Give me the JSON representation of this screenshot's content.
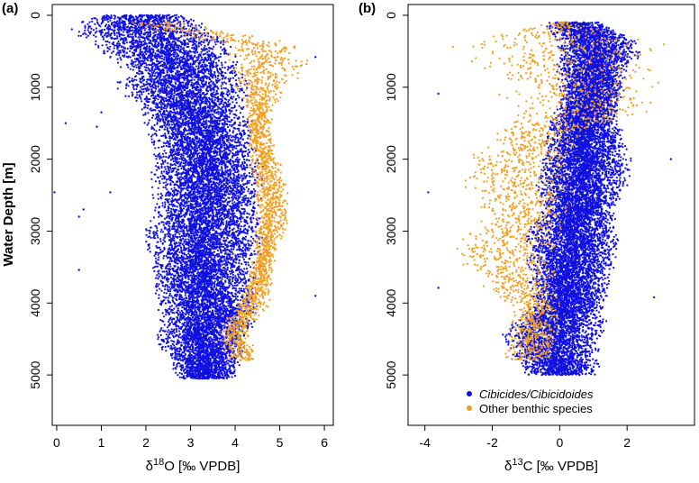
{
  "figure": {
    "y_axis_label": "Water Depth [m]",
    "legend": [
      {
        "label": "Cibicides/Cibicidoides",
        "italic": true,
        "color": "#1010e0"
      },
      {
        "label": "Other benthic species",
        "italic": false,
        "color": "#f0a020"
      }
    ]
  },
  "chart_data": [
    {
      "type": "scatter",
      "panel_label": "(a)",
      "xlabel_prefix": "δ",
      "xlabel_sup": "18",
      "xlabel_suffix": "O [‰ VPDB]",
      "xlim": [
        -0.1,
        6.2
      ],
      "xticks": [
        0,
        1,
        2,
        3,
        4,
        5,
        6
      ],
      "ylim": [
        5700,
        -150
      ],
      "yticks": [
        0,
        1000,
        2000,
        3000,
        4000,
        5000
      ],
      "y_reversed": true,
      "grid": false,
      "series": [
        {
          "name": "Cibicides/Cibicidoides",
          "color": "#1010e0",
          "profile": [
            [
              0,
              0.8,
              3.0
            ],
            [
              200,
              0.3,
              3.6
            ],
            [
              400,
              0.5,
              4.1
            ],
            [
              600,
              1.2,
              4.1
            ],
            [
              800,
              1.5,
              4.3
            ],
            [
              1000,
              1.2,
              4.4
            ],
            [
              1200,
              1.7,
              4.3
            ],
            [
              1500,
              1.9,
              4.4
            ],
            [
              1800,
              2.1,
              4.5
            ],
            [
              2200,
              2.1,
              4.7
            ],
            [
              2600,
              2.1,
              4.6
            ],
            [
              3000,
              1.9,
              4.8
            ],
            [
              3400,
              2.0,
              4.6
            ],
            [
              3800,
              2.1,
              4.5
            ],
            [
              4200,
              2.3,
              4.6
            ],
            [
              4500,
              2.2,
              4.3
            ],
            [
              4800,
              2.5,
              4.2
            ],
            [
              5050,
              2.7,
              4.0
            ]
          ]
        },
        {
          "name": "Other benthic species",
          "color": "#f0a020",
          "profile": [
            [
              100,
              1.2,
              3.0
            ],
            [
              400,
              3.5,
              5.5
            ],
            [
              700,
              3.8,
              5.8
            ],
            [
              1000,
              4.0,
              5.2
            ],
            [
              1300,
              4.2,
              4.9
            ],
            [
              1600,
              4.2,
              4.8
            ],
            [
              2000,
              4.3,
              5.0
            ],
            [
              2400,
              4.4,
              5.2
            ],
            [
              2800,
              4.4,
              5.3
            ],
            [
              3200,
              4.4,
              5.0
            ],
            [
              3600,
              4.3,
              4.9
            ],
            [
              4000,
              4.0,
              4.8
            ],
            [
              4400,
              3.6,
              4.3
            ],
            [
              4800,
              3.8,
              4.6
            ]
          ]
        }
      ],
      "outliers": [
        [
          -0.05,
          2460
        ],
        [
          1.0,
          1350
        ],
        [
          1.2,
          2460
        ],
        [
          0.5,
          2800
        ],
        [
          0.6,
          2700
        ],
        [
          0.5,
          3540
        ],
        [
          5.8,
          580
        ],
        [
          5.8,
          3900
        ],
        [
          0.2,
          1500
        ],
        [
          0.9,
          1550
        ]
      ]
    },
    {
      "type": "scatter",
      "panel_label": "(b)",
      "xlabel_prefix": "δ",
      "xlabel_sup": "13",
      "xlabel_suffix": "C [‰ VPDB]",
      "xlim": [
        -4.5,
        4.0
      ],
      "xticks": [
        -4,
        -2,
        0,
        2
      ],
      "ylim": [
        5700,
        -150
      ],
      "yticks": [
        0,
        1000,
        2000,
        3000,
        4000,
        5000
      ],
      "y_reversed": true,
      "grid": false,
      "series": [
        {
          "name": "Cibicides/Cibicidoides",
          "color": "#1010e0",
          "profile": [
            [
              100,
              -0.5,
              1.2
            ],
            [
              300,
              -0.2,
              2.2
            ],
            [
              500,
              -0.1,
              2.5
            ],
            [
              800,
              -0.1,
              2.0
            ],
            [
              1100,
              0.0,
              1.9
            ],
            [
              1400,
              -0.3,
              1.8
            ],
            [
              1800,
              -0.5,
              2.0
            ],
            [
              2100,
              -0.7,
              2.2
            ],
            [
              2400,
              -0.8,
              2.0
            ],
            [
              2700,
              -0.5,
              1.7
            ],
            [
              3000,
              -1.0,
              1.8
            ],
            [
              3300,
              -1.0,
              1.8
            ],
            [
              3600,
              -1.0,
              1.6
            ],
            [
              4000,
              -0.8,
              1.4
            ],
            [
              4400,
              -1.8,
              1.4
            ],
            [
              4700,
              -1.5,
              1.2
            ],
            [
              5000,
              -1.0,
              1.2
            ]
          ]
        },
        {
          "name": "Other benthic species",
          "color": "#f0a020",
          "profile": [
            [
              100,
              -0.3,
              0.5
            ],
            [
              400,
              -3.3,
              3.3
            ],
            [
              700,
              -2.8,
              3.2
            ],
            [
              1000,
              -1.8,
              3.0
            ],
            [
              1300,
              -2.0,
              3.2
            ],
            [
              1600,
              -1.8,
              0.8
            ],
            [
              2000,
              -2.8,
              0.5
            ],
            [
              2300,
              -3.2,
              0.5
            ],
            [
              2600,
              -2.5,
              0.5
            ],
            [
              2900,
              -2.5,
              0.3
            ],
            [
              3200,
              -3.5,
              0.2
            ],
            [
              3500,
              -3.0,
              0.0
            ],
            [
              3800,
              -2.3,
              0.0
            ],
            [
              4100,
              -1.5,
              0.2
            ],
            [
              4500,
              -1.5,
              0.0
            ],
            [
              4800,
              -1.8,
              0.0
            ]
          ]
        }
      ],
      "outliers": [
        [
          -3.9,
          2460
        ],
        [
          -3.6,
          1090
        ],
        [
          2.8,
          3920
        ],
        [
          -3.6,
          3790
        ],
        [
          3.3,
          2000
        ]
      ]
    }
  ]
}
